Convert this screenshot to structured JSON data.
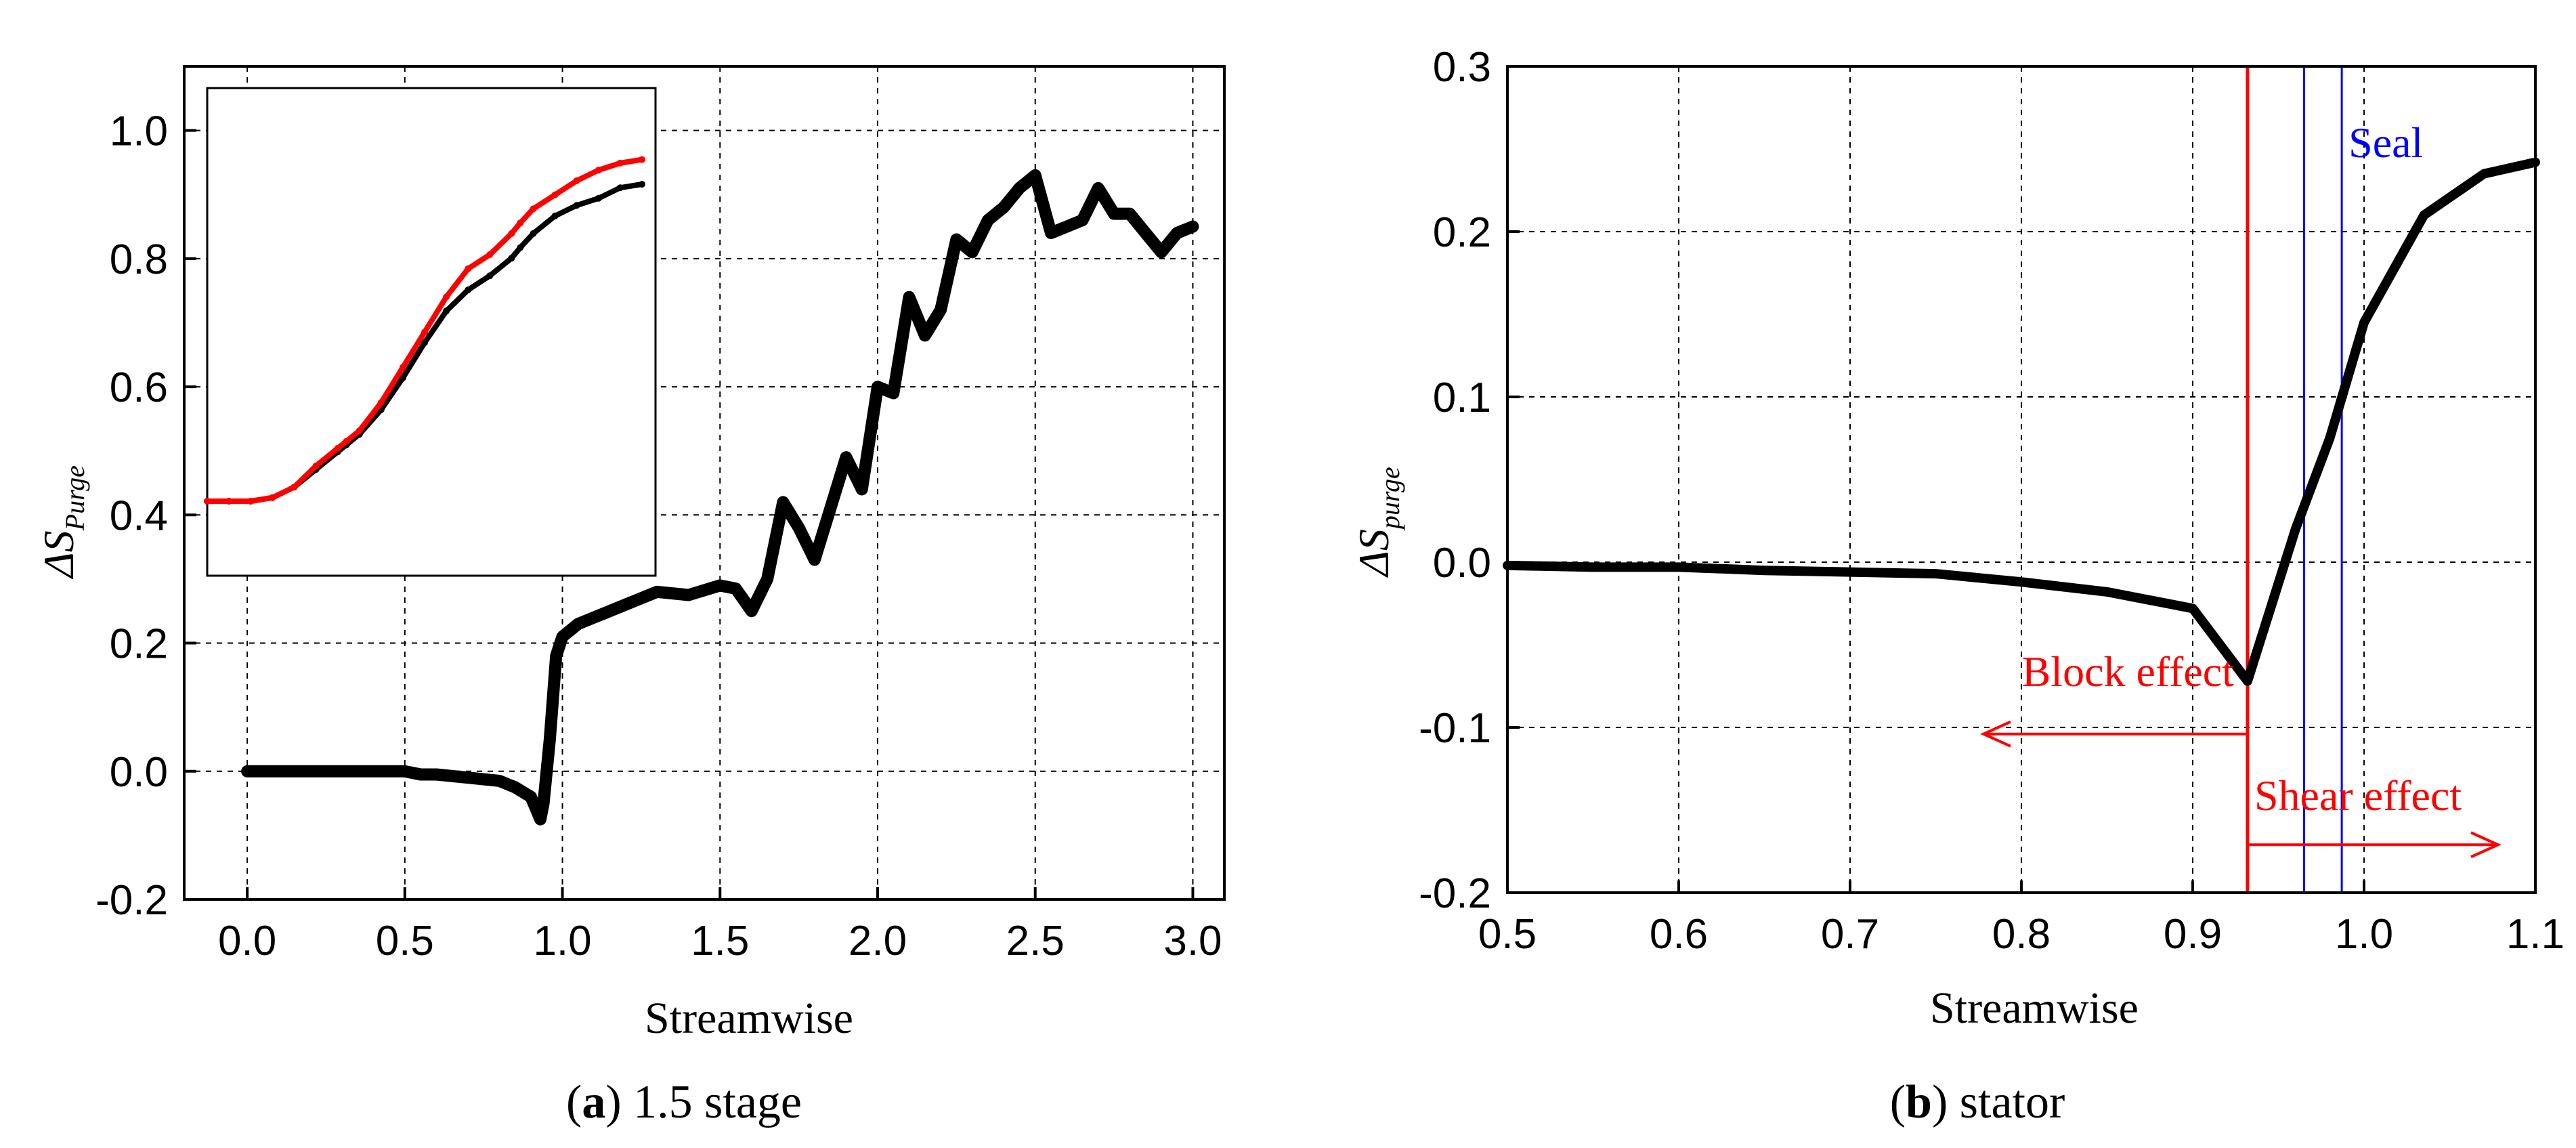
{
  "chart_data": [
    {
      "type": "line",
      "panel_label": "a",
      "caption": "1.5 stage",
      "xlabel": "Streamwise",
      "ylabel_main": "ΔS",
      "ylabel_sub": "Purge",
      "xlim": [
        -0.2,
        3.1
      ],
      "ylim": [
        -0.2,
        1.1
      ],
      "xticks": [
        0.0,
        0.5,
        1.0,
        1.5,
        2.0,
        2.5,
        3.0
      ],
      "xtick_labels": [
        "0.0",
        "0.5",
        "1.0",
        "1.5",
        "2.0",
        "2.5",
        "3.0"
      ],
      "yticks": [
        -0.2,
        0.0,
        0.2,
        0.4,
        0.6,
        0.8,
        1.0
      ],
      "ytick_labels": [
        "-0.2",
        "0.0",
        "0.2",
        "0.4",
        "0.6",
        "0.8",
        "1.0"
      ],
      "grid": true,
      "series": [
        {
          "color": "#000000",
          "x": [
            0.0,
            0.1,
            0.2,
            0.3,
            0.4,
            0.5,
            0.55,
            0.6,
            0.7,
            0.8,
            0.85,
            0.9,
            0.93,
            0.94,
            0.96,
            0.98,
            1.0,
            1.05,
            1.1,
            1.2,
            1.3,
            1.4,
            1.5,
            1.55,
            1.6,
            1.65,
            1.7,
            1.75,
            1.8,
            1.85,
            1.9,
            1.95,
            2.0,
            2.05,
            2.1,
            2.15,
            2.2,
            2.25,
            2.3,
            2.35,
            2.4,
            2.45,
            2.5,
            2.55,
            2.6,
            2.65,
            2.7,
            2.75,
            2.8,
            2.85,
            2.9,
            2.95,
            3.0
          ],
          "y": [
            0.0,
            0.0,
            0.0,
            0.0,
            0.0,
            0.0,
            -0.005,
            -0.005,
            -0.01,
            -0.015,
            -0.025,
            -0.04,
            -0.075,
            -0.05,
            0.05,
            0.18,
            0.21,
            0.23,
            0.24,
            0.26,
            0.28,
            0.275,
            0.29,
            0.285,
            0.25,
            0.3,
            0.42,
            0.38,
            0.33,
            0.41,
            0.49,
            0.44,
            0.6,
            0.59,
            0.74,
            0.68,
            0.72,
            0.83,
            0.81,
            0.86,
            0.88,
            0.91,
            0.93,
            0.84,
            0.85,
            0.86,
            0.91,
            0.87,
            0.87,
            0.84,
            0.81,
            0.84,
            0.85
          ]
        }
      ],
      "inset": {
        "series": [
          {
            "color": "#000000",
            "x": [
              0.0,
              0.05,
              0.1,
              0.15,
              0.2,
              0.25,
              0.3,
              0.32,
              0.35,
              0.4,
              0.45,
              0.5,
              0.55,
              0.6,
              0.65,
              0.7,
              0.72,
              0.75,
              0.8,
              0.85,
              0.9,
              0.95,
              1.0
            ],
            "y": [
              0.0,
              0.0,
              0.0,
              0.01,
              0.04,
              0.09,
              0.14,
              0.16,
              0.19,
              0.26,
              0.35,
              0.45,
              0.54,
              0.6,
              0.64,
              0.69,
              0.72,
              0.76,
              0.81,
              0.84,
              0.86,
              0.89,
              0.9
            ]
          },
          {
            "color": "#ff0000",
            "x": [
              0.0,
              0.05,
              0.1,
              0.15,
              0.2,
              0.25,
              0.3,
              0.32,
              0.35,
              0.4,
              0.45,
              0.5,
              0.55,
              0.6,
              0.65,
              0.7,
              0.72,
              0.75,
              0.8,
              0.85,
              0.9,
              0.95,
              1.0
            ],
            "y": [
              0.0,
              0.0,
              0.0,
              0.01,
              0.04,
              0.1,
              0.15,
              0.17,
              0.2,
              0.28,
              0.38,
              0.48,
              0.58,
              0.66,
              0.7,
              0.76,
              0.79,
              0.83,
              0.87,
              0.91,
              0.94,
              0.96,
              0.97
            ]
          }
        ]
      }
    },
    {
      "type": "line",
      "panel_label": "b",
      "caption": "stator",
      "xlabel": "Streamwise",
      "ylabel_main": "ΔS",
      "ylabel_sub": "purge",
      "xlim": [
        0.5,
        1.1
      ],
      "ylim": [
        -0.2,
        0.3
      ],
      "xticks": [
        0.5,
        0.6,
        0.7,
        0.8,
        0.9,
        1.0,
        1.1
      ],
      "xtick_labels": [
        "0.5",
        "0.6",
        "0.7",
        "0.8",
        "0.9",
        "1.0",
        "1.1"
      ],
      "yticks": [
        -0.2,
        -0.1,
        0.0,
        0.1,
        0.2,
        0.3
      ],
      "ytick_labels": [
        "-0.2",
        "-0.1",
        "0.0",
        "0.1",
        "0.2",
        "0.3"
      ],
      "grid": true,
      "series": [
        {
          "color": "#000000",
          "x": [
            0.5,
            0.55,
            0.6,
            0.65,
            0.7,
            0.75,
            0.8,
            0.85,
            0.9,
            0.932,
            0.96,
            0.98,
            1.0,
            1.035,
            1.07,
            1.1
          ],
          "y": [
            -0.002,
            -0.003,
            -0.003,
            -0.005,
            -0.006,
            -0.007,
            -0.012,
            -0.018,
            -0.028,
            -0.072,
            0.02,
            0.075,
            0.145,
            0.21,
            0.235,
            0.242
          ]
        }
      ],
      "vertical_lines": [
        {
          "x": 0.932,
          "color": "#ff0000"
        },
        {
          "x": 0.965,
          "color": "#0000ff"
        },
        {
          "x": 0.987,
          "color": "#0000ff"
        }
      ],
      "annotations": {
        "seal": {
          "text": "Seal",
          "color": "#0000ff"
        },
        "block": {
          "text": "Block effect",
          "color": "#ff0000"
        },
        "shear": {
          "text": "Shear effect",
          "color": "#ff0000"
        }
      }
    }
  ]
}
